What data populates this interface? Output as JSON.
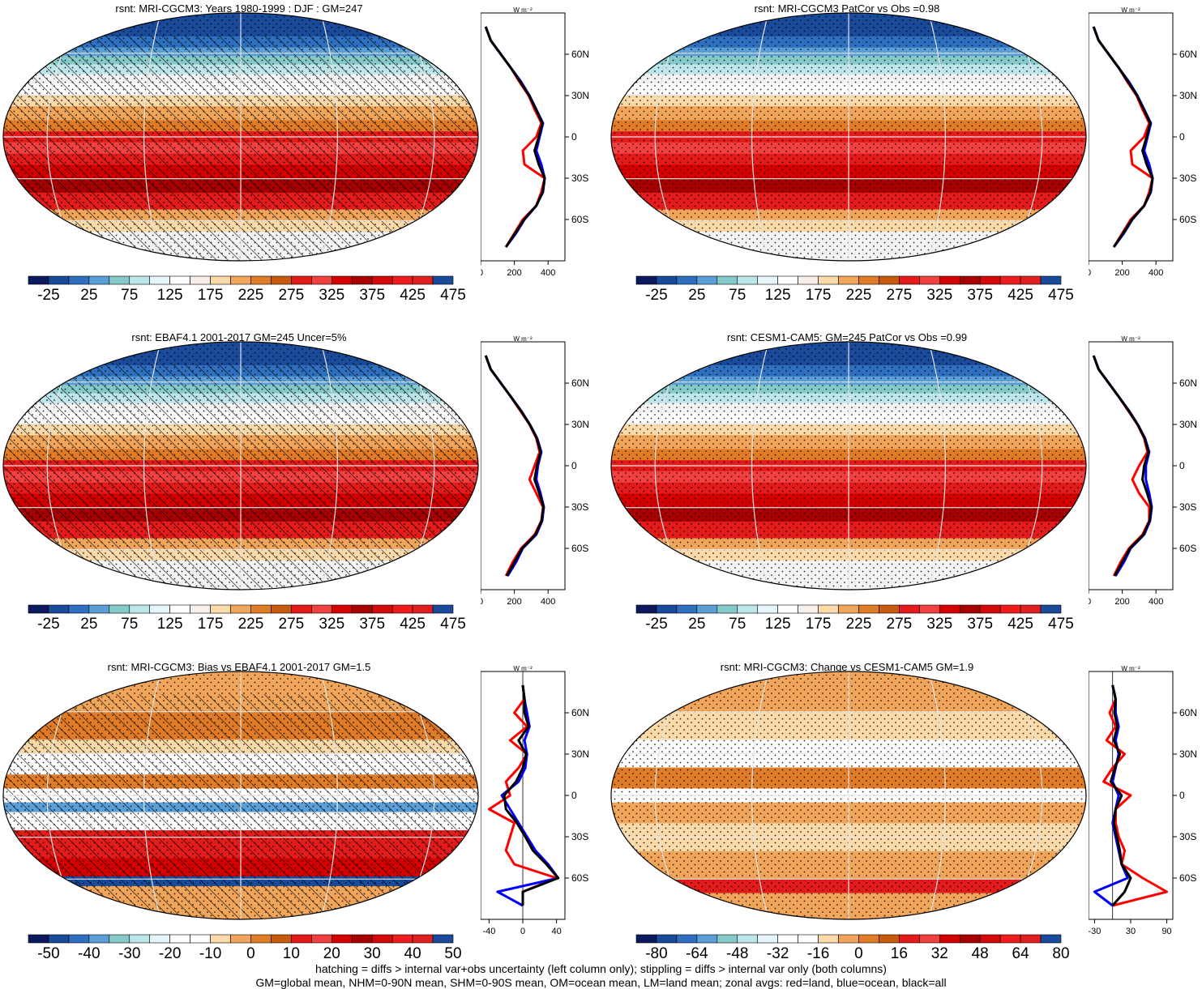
{
  "figure": {
    "footnote_line1": "hatching = diffs > internal var+obs uncertainty (left column only); stippling = diffs > internal var only (both columns)",
    "footnote_line2": "GM=global mean, NHM=0-90N mean, SHM=0-90S mean, OM=ocean mean, LM=land mean; zonal avgs: red=land, blue=ocean, black=all"
  },
  "colors": {
    "land_profile": "#ff0000",
    "ocean_profile": "#0000ff",
    "all_profile": "#000000",
    "grid": "#e6e6e6",
    "coast": "#000000"
  },
  "chart_data": [
    {
      "type": "heatmap",
      "id": "p1",
      "title": "rsnt: MRI-CGCM3: Years 1980-1999 : DJF : GM=247",
      "variant": "abs",
      "hatching": true,
      "colorbar": {
        "ticks": [
          "-25",
          "25",
          "75",
          "125",
          "175",
          "225",
          "275",
          "325",
          "375",
          "425",
          "475"
        ],
        "colors": [
          "#0b1a5e",
          "#1a4a9a",
          "#2e6fbf",
          "#5a9fd8",
          "#86c9c9",
          "#bde6ea",
          "#e6f7fb",
          "#ffffff",
          "#f7f0ea",
          "#fbd9a8",
          "#f0a55a",
          "#e07b28",
          "#c85a0e",
          "#e41b1b",
          "#f04040",
          "#d40000",
          "#a80000",
          "#d40a0a",
          "#ee1c1c",
          "#e02020",
          "#1a4a9a"
        ]
      },
      "profile": {
        "ylabel_unit": "W m⁻²",
        "lat_ticks": [
          "60N",
          "30N",
          "0",
          "30S",
          "60S"
        ],
        "x_ticks": [
          "0",
          "200",
          "400"
        ],
        "xlim": [
          0,
          500
        ],
        "lat": [
          80,
          70,
          60,
          50,
          40,
          30,
          20,
          10,
          0,
          -10,
          -20,
          -30,
          -40,
          -50,
          -60,
          -70,
          -80
        ],
        "land": [
          30,
          60,
          120,
          180,
          230,
          285,
          320,
          360,
          330,
          250,
          260,
          380,
          360,
          330,
          250,
          200,
          150
        ],
        "ocean": [
          30,
          60,
          120,
          180,
          240,
          290,
          330,
          370,
          350,
          330,
          360,
          380,
          370,
          330,
          260,
          210,
          150
        ],
        "all": [
          30,
          60,
          120,
          180,
          235,
          288,
          328,
          366,
          345,
          320,
          345,
          380,
          368,
          330,
          258,
          205,
          150
        ]
      }
    },
    {
      "type": "heatmap",
      "id": "p2",
      "title": "rsnt: MRI-CGCM3 PatCor vs Obs =0.98",
      "variant": "abs",
      "hatching": false,
      "colorbar": {
        "ticks": [
          "-25",
          "25",
          "75",
          "125",
          "175",
          "225",
          "275",
          "325",
          "375",
          "425",
          "475"
        ]
      },
      "profile": {
        "ylabel_unit": "W m⁻²",
        "lat_ticks": [
          "60N",
          "30N",
          "0",
          "30S",
          "60S"
        ],
        "x_ticks": [
          "0",
          "200",
          "400"
        ],
        "xlim": [
          0,
          500
        ],
        "lat": [
          80,
          70,
          60,
          50,
          40,
          30,
          20,
          10,
          0,
          -10,
          -20,
          -30,
          -40,
          -50,
          -60,
          -70,
          -80
        ],
        "land": [
          30,
          60,
          120,
          180,
          230,
          285,
          320,
          360,
          330,
          250,
          260,
          380,
          360,
          330,
          250,
          200,
          150
        ],
        "ocean": [
          30,
          60,
          120,
          180,
          240,
          290,
          330,
          370,
          350,
          330,
          360,
          380,
          370,
          330,
          260,
          210,
          150
        ],
        "all": [
          30,
          60,
          120,
          180,
          235,
          288,
          328,
          366,
          345,
          320,
          345,
          380,
          368,
          330,
          258,
          205,
          150
        ]
      }
    },
    {
      "type": "heatmap",
      "id": "p3",
      "title": "rsnt: EBAF4.1 2001-2017 GM=245 Uncer=5%",
      "variant": "abs",
      "hatching": true,
      "colorbar": {
        "ticks": [
          "-25",
          "25",
          "75",
          "125",
          "175",
          "225",
          "275",
          "325",
          "375",
          "425",
          "475"
        ]
      },
      "profile": {
        "ylabel_unit": "W m⁻²",
        "lat_ticks": [
          "60N",
          "30N",
          "0",
          "30S",
          "60S"
        ],
        "x_ticks": [
          "0",
          "200",
          "400"
        ],
        "xlim": [
          0,
          500
        ],
        "lat": [
          80,
          70,
          60,
          50,
          40,
          30,
          20,
          10,
          0,
          -10,
          -20,
          -30,
          -40,
          -50,
          -60,
          -70,
          -80
        ],
        "land": [
          30,
          60,
          120,
          180,
          235,
          290,
          330,
          350,
          320,
          290,
          330,
          370,
          360,
          320,
          240,
          190,
          150
        ],
        "ocean": [
          30,
          60,
          120,
          180,
          240,
          292,
          335,
          360,
          340,
          330,
          355,
          375,
          365,
          330,
          250,
          210,
          160
        ],
        "all": [
          30,
          60,
          120,
          180,
          238,
          291,
          333,
          356,
          334,
          320,
          348,
          373,
          362,
          326,
          246,
          200,
          155
        ]
      }
    },
    {
      "type": "heatmap",
      "id": "p4",
      "title": "rsnt: CESM1-CAM5: GM=245 PatCor vs Obs =0.99",
      "variant": "abs",
      "hatching": false,
      "colorbar": {
        "ticks": [
          "-25",
          "25",
          "75",
          "125",
          "175",
          "225",
          "275",
          "325",
          "375",
          "425",
          "475"
        ]
      },
      "profile": {
        "ylabel_unit": "W m⁻²",
        "lat_ticks": [
          "60N",
          "30N",
          "0",
          "30S",
          "60S"
        ],
        "x_ticks": [
          "0",
          "200",
          "400"
        ],
        "xlim": [
          0,
          500
        ],
        "lat": [
          80,
          70,
          60,
          50,
          40,
          30,
          20,
          10,
          0,
          -10,
          -20,
          -30,
          -40,
          -50,
          -60,
          -70,
          -80
        ],
        "land": [
          30,
          60,
          120,
          180,
          235,
          290,
          330,
          350,
          300,
          260,
          300,
          360,
          360,
          320,
          240,
          190,
          150
        ],
        "ocean": [
          30,
          60,
          120,
          180,
          240,
          292,
          335,
          360,
          340,
          340,
          360,
          375,
          365,
          330,
          250,
          210,
          160
        ],
        "all": [
          30,
          60,
          120,
          180,
          238,
          291,
          333,
          356,
          330,
          320,
          348,
          372,
          362,
          326,
          246,
          200,
          155
        ]
      }
    },
    {
      "type": "heatmap",
      "id": "p5",
      "title": "rsnt: MRI-CGCM3: Bias vs EBAF4.1 2001-2017 GM=1.5",
      "variant": "bias",
      "hatching": true,
      "colorbar": {
        "ticks": [
          "-50",
          "-40",
          "-30",
          "-20",
          "-10",
          "0",
          "10",
          "20",
          "30",
          "40",
          "50"
        ],
        "colors": [
          "#0b1a5e",
          "#1a4a9a",
          "#2e6fbf",
          "#5a9fd8",
          "#86c9c9",
          "#bde6ea",
          "#e6f7fb",
          "#ffffff",
          "#ffffff",
          "#fbd9a8",
          "#f0a55a",
          "#e07b28",
          "#c85a0e",
          "#e41b1b",
          "#f04040",
          "#d40000",
          "#a80000",
          "#d40a0a",
          "#ee1c1c",
          "#e02020",
          "#1a4a9a"
        ]
      },
      "profile": {
        "ylabel_unit": "W m⁻²",
        "lat_ticks": [
          "60N",
          "30N",
          "0",
          "30S",
          "60S"
        ],
        "x_ticks": [
          "-40",
          "0",
          "40"
        ],
        "xlim": [
          -50,
          50
        ],
        "lat": [
          80,
          70,
          60,
          50,
          40,
          30,
          20,
          10,
          0,
          -10,
          -20,
          -30,
          -40,
          -50,
          -60,
          -70,
          -80
        ],
        "land": [
          0,
          2,
          -10,
          5,
          -15,
          5,
          -5,
          -20,
          -15,
          -40,
          -10,
          -15,
          -20,
          -10,
          40,
          0,
          0
        ],
        "ocean": [
          0,
          2,
          5,
          8,
          2,
          5,
          3,
          -5,
          -25,
          -15,
          -5,
          5,
          15,
          30,
          42,
          -30,
          0
        ],
        "all": [
          0,
          2,
          2,
          7,
          -5,
          4,
          0,
          -8,
          -22,
          -20,
          -7,
          3,
          12,
          28,
          42,
          0,
          0
        ]
      }
    },
    {
      "type": "heatmap",
      "id": "p6",
      "title": "rsnt: MRI-CGCM3: Change vs CESM1-CAM5 GM=1.9",
      "variant": "change",
      "hatching": false,
      "colorbar": {
        "ticks": [
          "-80",
          "-64",
          "-48",
          "-32",
          "-16",
          "0",
          "16",
          "32",
          "48",
          "64",
          "80"
        ],
        "colors": [
          "#0b1a5e",
          "#1a4a9a",
          "#2e6fbf",
          "#5a9fd8",
          "#86c9c9",
          "#bde6ea",
          "#e6f7fb",
          "#ffffff",
          "#ffffff",
          "#fbd9a8",
          "#f0a55a",
          "#e07b28",
          "#c85a0e",
          "#e41b1b",
          "#f04040",
          "#d40000",
          "#a80000",
          "#d40a0a",
          "#ee1c1c",
          "#e02020",
          "#1a4a9a"
        ]
      },
      "profile": {
        "ylabel_unit": "W m⁻²",
        "lat_ticks": [
          "60N",
          "30N",
          "0",
          "30S",
          "60S"
        ],
        "x_ticks": [
          "-30",
          "30",
          "90"
        ],
        "xlim": [
          -40,
          100
        ],
        "lat": [
          80,
          70,
          60,
          50,
          40,
          30,
          20,
          10,
          0,
          -10,
          -20,
          -30,
          -40,
          -50,
          -60,
          -70,
          -80
        ],
        "land": [
          0,
          5,
          -5,
          5,
          -10,
          20,
          0,
          -15,
          30,
          5,
          5,
          10,
          20,
          15,
          50,
          90,
          0
        ],
        "ocean": [
          0,
          5,
          5,
          10,
          5,
          10,
          5,
          0,
          10,
          5,
          0,
          5,
          10,
          15,
          25,
          -30,
          0
        ],
        "all": [
          0,
          5,
          3,
          8,
          2,
          12,
          4,
          -3,
          15,
          5,
          2,
          7,
          12,
          15,
          30,
          20,
          0
        ]
      }
    }
  ]
}
